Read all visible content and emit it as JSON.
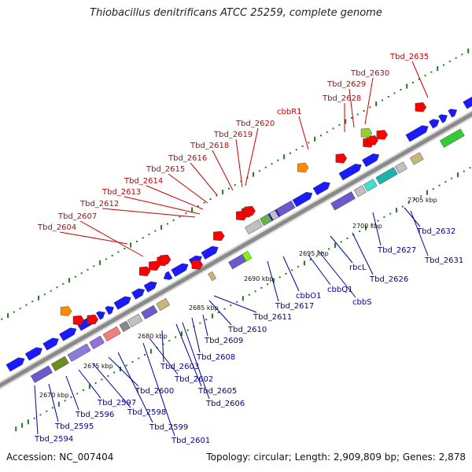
{
  "title": "Thiobacillus denitrificans ATCC 25259, complete genome",
  "footer": {
    "accession": "Accession: NC_007404",
    "summary": "Topology: circular; Length: 2,909,809 bp; Genes: 2,878"
  },
  "colors": {
    "label_top": "#cc0000",
    "label_bottom": "#000099",
    "backbone": "#8a8a8a",
    "dots": "#1f7a1f"
  },
  "scale_ticks": [
    "2670 kbp",
    "2675 kbp",
    "2680 kbp",
    "2685 kbp",
    "2690 kbp",
    "2695 kbp",
    "2700 kbp",
    "2705 kbp"
  ],
  "top_labels": [
    "Tbd_2604",
    "Tbd_2607",
    "Tbd_2612",
    "Tbd_2613",
    "Tbd_2614",
    "Tbd_2615",
    "Tbd_2616",
    "Tbd_2618",
    "Tbd_2619",
    "Tbd_2620",
    "cbbR1",
    "Tbd_2628",
    "Tbd_2629",
    "Tbd_2630",
    "Tbd_2635"
  ],
  "bottom_labels": [
    "Tbd_2594",
    "Tbd_2595",
    "Tbd_2596",
    "Tbd_2597",
    "Tbd_2598",
    "Tbd_2599",
    "Tbd_2600",
    "Tbd_2601",
    "Tbd_2602",
    "Tbd_2603",
    "Tbd_2605",
    "Tbd_2606",
    "Tbd_2608",
    "Tbd_2609",
    "Tbd_2610",
    "Tbd_2611",
    "Tbd_2617",
    "cbbO1",
    "cbbQ1",
    "cbbS",
    "rbcL",
    "Tbd_2626",
    "Tbd_2627",
    "Tbd_2631",
    "Tbd_2632"
  ]
}
